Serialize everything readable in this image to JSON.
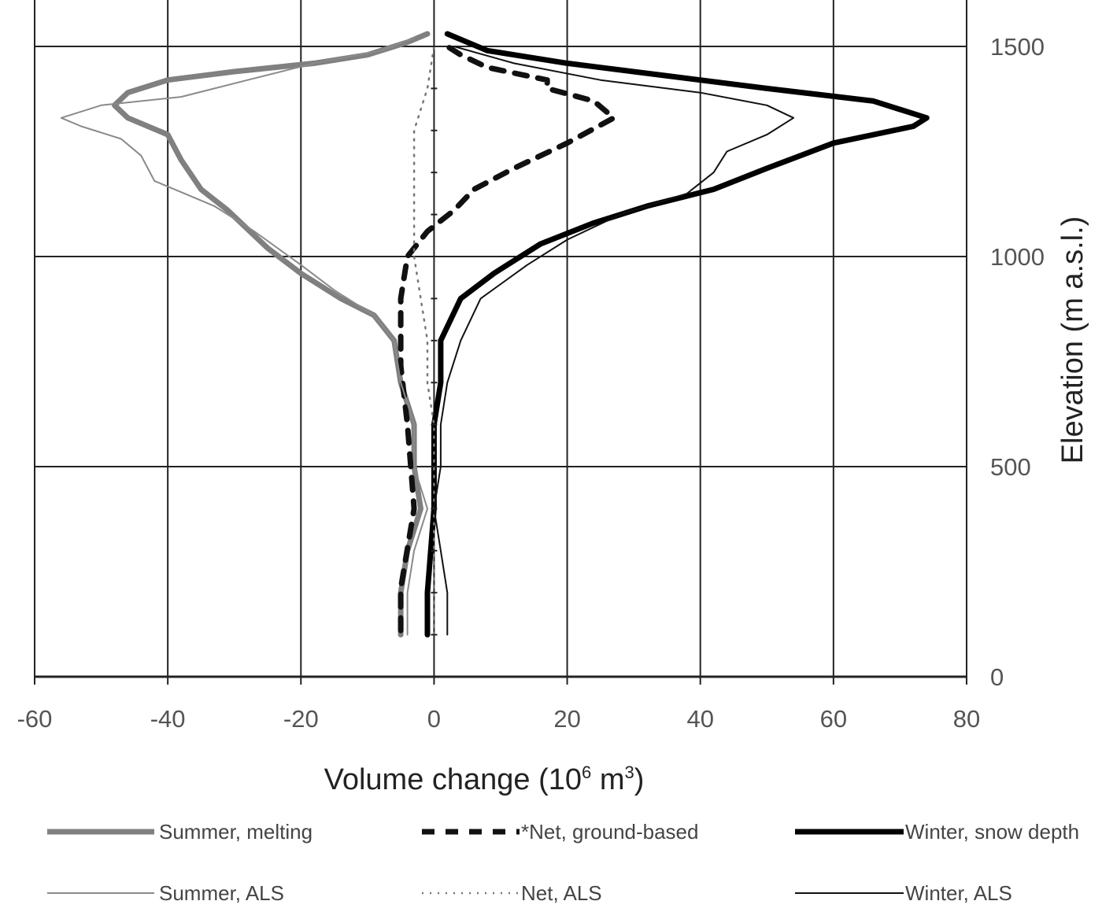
{
  "chart_data": {
    "type": "line",
    "xlabel_main": "Volume change (10",
    "xlabel_sup": "6",
    "xlabel_mid": " m",
    "xlabel_sup2": "3",
    "xlabel_end": ")",
    "ylabel": "Elevation (m a.s.l.)",
    "xlim": [
      -60,
      80
    ],
    "ylim": [
      0,
      1500
    ],
    "x_ticks": [
      -60,
      -40,
      -20,
      0,
      20,
      40,
      60,
      80
    ],
    "x_tick_labels": [
      "-60",
      "-40",
      "-20",
      "0",
      "20",
      "40",
      "60",
      "80"
    ],
    "y_ticks": [
      0,
      500,
      1000,
      1500
    ],
    "y_tick_labels": [
      "0",
      "500",
      "1000",
      "1500"
    ],
    "grid": true,
    "series": [
      {
        "name": "Summer, melting",
        "color": "#808080",
        "style": "thick",
        "points": [
          [
            -5,
            100
          ],
          [
            -5,
            200
          ],
          [
            -4,
            300
          ],
          [
            -2,
            400
          ],
          [
            -3,
            500
          ],
          [
            -3,
            600
          ],
          [
            -5,
            700
          ],
          [
            -6,
            800
          ],
          [
            -9,
            860
          ],
          [
            -14,
            900
          ],
          [
            -20,
            960
          ],
          [
            -25,
            1020
          ],
          [
            -31,
            1110
          ],
          [
            -35,
            1160
          ],
          [
            -38,
            1230
          ],
          [
            -40,
            1290
          ],
          [
            -46,
            1330
          ],
          [
            -48,
            1360
          ],
          [
            -46,
            1390
          ],
          [
            -40,
            1420
          ],
          [
            -30,
            1440
          ],
          [
            -18,
            1460
          ],
          [
            -10,
            1480
          ],
          [
            -4,
            1510
          ],
          [
            -1,
            1530
          ]
        ]
      },
      {
        "name": "Net, ground-based",
        "color": "#111111",
        "style": "dashed",
        "points": [
          [
            -5,
            110
          ],
          [
            -5,
            210
          ],
          [
            -3,
            400
          ],
          [
            -4,
            600
          ],
          [
            -5,
            740
          ],
          [
            -5,
            900
          ],
          [
            -4,
            1000
          ],
          [
            -1,
            1060
          ],
          [
            3,
            1110
          ],
          [
            6,
            1160
          ],
          [
            12,
            1210
          ],
          [
            20,
            1270
          ],
          [
            27,
            1330
          ],
          [
            24,
            1370
          ],
          [
            17,
            1400
          ],
          [
            17,
            1420
          ],
          [
            8,
            1450
          ],
          [
            4,
            1480
          ],
          [
            1,
            1510
          ]
        ]
      },
      {
        "name": "Winter, snow depth",
        "color": "#000000",
        "style": "thick",
        "points": [
          [
            -1,
            100
          ],
          [
            -1,
            200
          ],
          [
            0,
            400
          ],
          [
            0,
            500
          ],
          [
            0,
            600
          ],
          [
            1,
            700
          ],
          [
            1,
            800
          ],
          [
            4,
            900
          ],
          [
            9,
            960
          ],
          [
            16,
            1030
          ],
          [
            24,
            1080
          ],
          [
            32,
            1120
          ],
          [
            42,
            1160
          ],
          [
            50,
            1210
          ],
          [
            60,
            1270
          ],
          [
            72,
            1310
          ],
          [
            74,
            1330
          ],
          [
            66,
            1370
          ],
          [
            50,
            1400
          ],
          [
            35,
            1430
          ],
          [
            20,
            1460
          ],
          [
            8,
            1490
          ],
          [
            2,
            1530
          ]
        ]
      },
      {
        "name": "Summer, ALS",
        "color": "#8a8a8a",
        "style": "thin",
        "points": [
          [
            -4,
            100
          ],
          [
            -4,
            200
          ],
          [
            -3,
            300
          ],
          [
            -1,
            400
          ],
          [
            -3,
            500
          ],
          [
            -3,
            600
          ],
          [
            -5,
            700
          ],
          [
            -6,
            800
          ],
          [
            -9,
            860
          ],
          [
            -15,
            920
          ],
          [
            -20,
            980
          ],
          [
            -27,
            1060
          ],
          [
            -33,
            1120
          ],
          [
            -42,
            1180
          ],
          [
            -44,
            1240
          ],
          [
            -47,
            1280
          ],
          [
            -53,
            1310
          ],
          [
            -56,
            1330
          ],
          [
            -50,
            1360
          ],
          [
            -38,
            1380
          ],
          [
            -28,
            1420
          ],
          [
            -18,
            1460
          ],
          [
            -8,
            1490
          ],
          [
            -3,
            1520
          ]
        ]
      },
      {
        "name": "Net, ALS",
        "color": "#777777",
        "style": "dotted",
        "points": [
          [
            0,
            100
          ],
          [
            0,
            300
          ],
          [
            0,
            500
          ],
          [
            0,
            600
          ],
          [
            -1,
            700
          ],
          [
            -1,
            800
          ],
          [
            -2,
            900
          ],
          [
            -3,
            1000
          ],
          [
            -3,
            1100
          ],
          [
            -3,
            1200
          ],
          [
            -3,
            1300
          ],
          [
            -1,
            1400
          ],
          [
            0,
            1500
          ]
        ]
      },
      {
        "name": "Winter, ALS",
        "color": "#111111",
        "style": "thin",
        "points": [
          [
            2,
            100
          ],
          [
            2,
            200
          ],
          [
            1,
            300
          ],
          [
            0,
            400
          ],
          [
            1,
            500
          ],
          [
            1,
            600
          ],
          [
            2,
            700
          ],
          [
            4,
            800
          ],
          [
            7,
            900
          ],
          [
            14,
            980
          ],
          [
            20,
            1040
          ],
          [
            28,
            1100
          ],
          [
            38,
            1150
          ],
          [
            42,
            1200
          ],
          [
            44,
            1250
          ],
          [
            50,
            1290
          ],
          [
            54,
            1330
          ],
          [
            50,
            1360
          ],
          [
            40,
            1390
          ],
          [
            25,
            1420
          ],
          [
            12,
            1460
          ],
          [
            3,
            1500
          ]
        ]
      }
    ]
  }
}
